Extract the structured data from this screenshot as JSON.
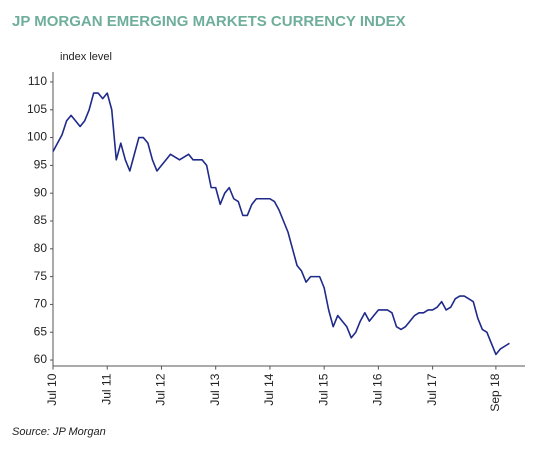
{
  "chart_data": {
    "type": "line",
    "title": "JP MORGAN EMERGING MARKETS CURRENCY INDEX",
    "y_label": "index level",
    "source": "Source: JP Morgan",
    "color": "#1f2a8a",
    "x": [
      "2010-07",
      "2010-08",
      "2010-09",
      "2010-10",
      "2010-11",
      "2010-12",
      "2011-01",
      "2011-02",
      "2011-03",
      "2011-04",
      "2011-05",
      "2011-06",
      "2011-07",
      "2011-08",
      "2011-09",
      "2011-10",
      "2011-11",
      "2011-12",
      "2012-01",
      "2012-02",
      "2012-03",
      "2012-04",
      "2012-05",
      "2012-06",
      "2012-07",
      "2012-08",
      "2012-09",
      "2012-10",
      "2012-11",
      "2012-12",
      "2013-01",
      "2013-02",
      "2013-03",
      "2013-04",
      "2013-05",
      "2013-06",
      "2013-07",
      "2013-08",
      "2013-09",
      "2013-10",
      "2013-11",
      "2013-12",
      "2014-01",
      "2014-02",
      "2014-03",
      "2014-04",
      "2014-05",
      "2014-06",
      "2014-07",
      "2014-08",
      "2014-09",
      "2014-10",
      "2014-11",
      "2014-12",
      "2015-01",
      "2015-02",
      "2015-03",
      "2015-04",
      "2015-05",
      "2015-06",
      "2015-07",
      "2015-08",
      "2015-09",
      "2015-10",
      "2015-11",
      "2015-12",
      "2016-01",
      "2016-02",
      "2016-03",
      "2016-04",
      "2016-05",
      "2016-06",
      "2016-07",
      "2016-08",
      "2016-09",
      "2016-10",
      "2016-11",
      "2016-12",
      "2017-01",
      "2017-02",
      "2017-03",
      "2017-04",
      "2017-05",
      "2017-06",
      "2017-07",
      "2017-08",
      "2017-09",
      "2017-10",
      "2017-11",
      "2017-12",
      "2018-01",
      "2018-02",
      "2018-03",
      "2018-04",
      "2018-05",
      "2018-06",
      "2018-07",
      "2018-08",
      "2018-09",
      "2018-10",
      "2018-11",
      "2018-12"
    ],
    "values": [
      97.5,
      99,
      100.5,
      103,
      104,
      103,
      102,
      103,
      105,
      108,
      108,
      107,
      108,
      105,
      96,
      99,
      96,
      94,
      97,
      100,
      100,
      99,
      96,
      94,
      95,
      96,
      97,
      96.5,
      96,
      96.5,
      97,
      96,
      96,
      96,
      95,
      91,
      91,
      88,
      90,
      91,
      89,
      88.5,
      86,
      86,
      88,
      89,
      89,
      89,
      89,
      88.5,
      87,
      85,
      83,
      80,
      77,
      76,
      74,
      75,
      75,
      75,
      73,
      69,
      66,
      68,
      67,
      66,
      64,
      65,
      67,
      68.5,
      67,
      68,
      69,
      69,
      69,
      68.5,
      66,
      65.5,
      66,
      67,
      68,
      68.5,
      68.5,
      69,
      69,
      69.5,
      70.5,
      69,
      69.5,
      71,
      71.5,
      71.5,
      71,
      70.5,
      67.5,
      65.5,
      65,
      63,
      61,
      62,
      62.5,
      63
    ],
    "xlim": [
      "2010-07",
      "2019-03"
    ],
    "xticks": [
      {
        "value": "2010-07",
        "label": "Jul 10"
      },
      {
        "value": "2011-07",
        "label": "Jul 11"
      },
      {
        "value": "2012-07",
        "label": "Jul 12"
      },
      {
        "value": "2013-07",
        "label": "Jul 13"
      },
      {
        "value": "2014-07",
        "label": "Jul 14"
      },
      {
        "value": "2015-07",
        "label": "Jul 15"
      },
      {
        "value": "2016-07",
        "label": "Jul 16"
      },
      {
        "value": "2017-07",
        "label": "Jul 17"
      },
      {
        "value": "2018-09",
        "label": "Sep 18"
      }
    ],
    "ylim": [
      59,
      111
    ],
    "yticks": [
      60,
      65,
      70,
      75,
      80,
      85,
      90,
      95,
      100,
      105,
      110
    ],
    "grid": false
  }
}
